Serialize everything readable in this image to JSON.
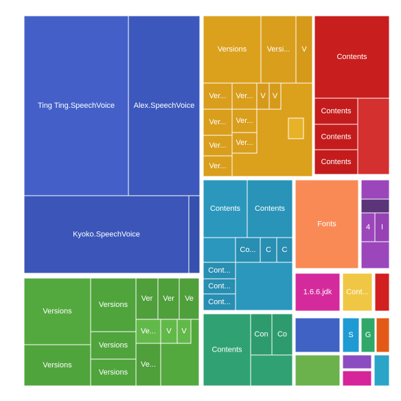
{
  "chart_data": {
    "type": "treemap",
    "title": "",
    "groups": [
      {
        "name": "",
        "color": "#3f5bc0",
        "children": [
          {
            "label": "Ting Ting.SpeechVoice",
            "color": "#4460c8"
          },
          {
            "label": "Alex.SpeechVoice",
            "color": "#3d58bc"
          },
          {
            "label": "Kyoko.SpeechVoice",
            "color": "#3b56b8"
          },
          {
            "label": "",
            "color": "#3551ad"
          }
        ]
      },
      {
        "name": "",
        "color": "#dca11c",
        "children": [
          {
            "label": "Versions",
            "color": "#dca11c"
          },
          {
            "label": "Versi...",
            "color": "#d99e1c"
          },
          {
            "label": "V",
            "color": "#d69a1b"
          },
          {
            "label": "Ver...",
            "color": "#d99e1c"
          },
          {
            "label": "Ver...",
            "color": "#d99e1c"
          },
          {
            "label": "V",
            "color": "#d69a1b"
          },
          {
            "label": "V",
            "color": "#d69a1b"
          },
          {
            "label": "Ver...",
            "color": "#d99e1c"
          },
          {
            "label": "Ver...",
            "color": "#d99e1c"
          },
          {
            "label": "Ver...",
            "color": "#d99e1c"
          },
          {
            "label": "Ver...",
            "color": "#d99e1c"
          },
          {
            "label": "Ver...",
            "color": "#d99e1c"
          },
          {
            "label": "",
            "color": "#e7b227"
          }
        ]
      },
      {
        "name": "",
        "color": "#c91e1e",
        "children": [
          {
            "label": "Contents",
            "color": "#c91e1e"
          },
          {
            "label": "Contents",
            "color": "#c41c1c"
          },
          {
            "label": "Contents",
            "color": "#c41c1c"
          },
          {
            "label": "Contents",
            "color": "#c41c1c"
          },
          {
            "label": "",
            "color": "#d43030"
          }
        ]
      },
      {
        "name": "",
        "color": "#2b97bd",
        "children": [
          {
            "label": "Contents",
            "color": "#2b97bd"
          },
          {
            "label": "Contents",
            "color": "#2a93b8"
          },
          {
            "label": "Co...",
            "color": "#288eb2"
          },
          {
            "label": "C",
            "color": "#288eb2"
          },
          {
            "label": "C",
            "color": "#288eb2"
          },
          {
            "label": "Cont...",
            "color": "#288eb2"
          },
          {
            "label": "Cont...",
            "color": "#288eb2"
          },
          {
            "label": "Cont...",
            "color": "#288eb2"
          }
        ]
      },
      {
        "name": "",
        "color": "#f98a56",
        "children": [
          {
            "label": "Fonts",
            "color": "#f98a56"
          }
        ]
      },
      {
        "name": "",
        "color": "#9b47bb",
        "children": [
          {
            "label": "4",
            "color": "#9b47bb"
          },
          {
            "label": "I",
            "color": "#9642b5"
          },
          {
            "label": "",
            "color": "#5a3578"
          }
        ]
      },
      {
        "name": "",
        "color": "#53a93e",
        "children": [
          {
            "label": "Versions",
            "color": "#53a93e"
          },
          {
            "label": "Versions",
            "color": "#50a43c"
          },
          {
            "label": "Ver",
            "color": "#4f9f3b"
          },
          {
            "label": "Ver",
            "color": "#4f9f3b"
          },
          {
            "label": "Ve",
            "color": "#4f9f3b"
          },
          {
            "label": "Versions",
            "color": "#50a43c"
          },
          {
            "label": "Versions",
            "color": "#50a43c"
          },
          {
            "label": "Versions",
            "color": "#50a43c"
          },
          {
            "label": "Ve...",
            "color": "#63b84a"
          },
          {
            "label": "V",
            "color": "#63b84a"
          },
          {
            "label": "V",
            "color": "#63b84a"
          },
          {
            "label": "Ve...",
            "color": "#4f9f3b"
          }
        ]
      },
      {
        "name": "",
        "color": "#30a173",
        "children": [
          {
            "label": "Contents",
            "color": "#30a173"
          },
          {
            "label": "Con",
            "color": "#2e9b6f"
          },
          {
            "label": "Co",
            "color": "#2e9b6f"
          }
        ]
      },
      {
        "name": "",
        "color": "#d42a9c",
        "children": [
          {
            "label": "1.6.6.jdk",
            "color": "#d42a9c"
          }
        ]
      },
      {
        "name": "",
        "color": "#f0c744",
        "children": [
          {
            "label": "Cont...",
            "color": "#f0c744"
          }
        ]
      },
      {
        "name": "",
        "color": "#d21f1f",
        "children": [
          {
            "label": "",
            "color": "#d21f1f"
          }
        ]
      },
      {
        "name": "",
        "color": "#3f62c4",
        "children": [
          {
            "label": "",
            "color": "#3f62c4"
          }
        ]
      },
      {
        "name": "",
        "color": "#1e9bd2",
        "children": [
          {
            "label": "S",
            "color": "#1e9bd2"
          }
        ]
      },
      {
        "name": "",
        "color": "#2fa86a",
        "children": [
          {
            "label": "G",
            "color": "#2fa86a"
          }
        ]
      },
      {
        "name": "",
        "color": "#e35a18",
        "children": [
          {
            "label": "",
            "color": "#e35a18"
          }
        ]
      },
      {
        "name": "",
        "color": "#6bb24c",
        "children": [
          {
            "label": "",
            "color": "#6bb24c"
          }
        ]
      },
      {
        "name": "",
        "color": "#8a4cc0",
        "children": [
          {
            "label": "",
            "color": "#8a4cc0"
          }
        ]
      },
      {
        "name": "",
        "color": "#d6249a",
        "children": [
          {
            "label": "",
            "color": "#d6249a"
          }
        ]
      },
      {
        "name": "",
        "color": "#2aa5c8",
        "children": [
          {
            "label": "",
            "color": "#2aa5c8"
          }
        ]
      }
    ]
  }
}
